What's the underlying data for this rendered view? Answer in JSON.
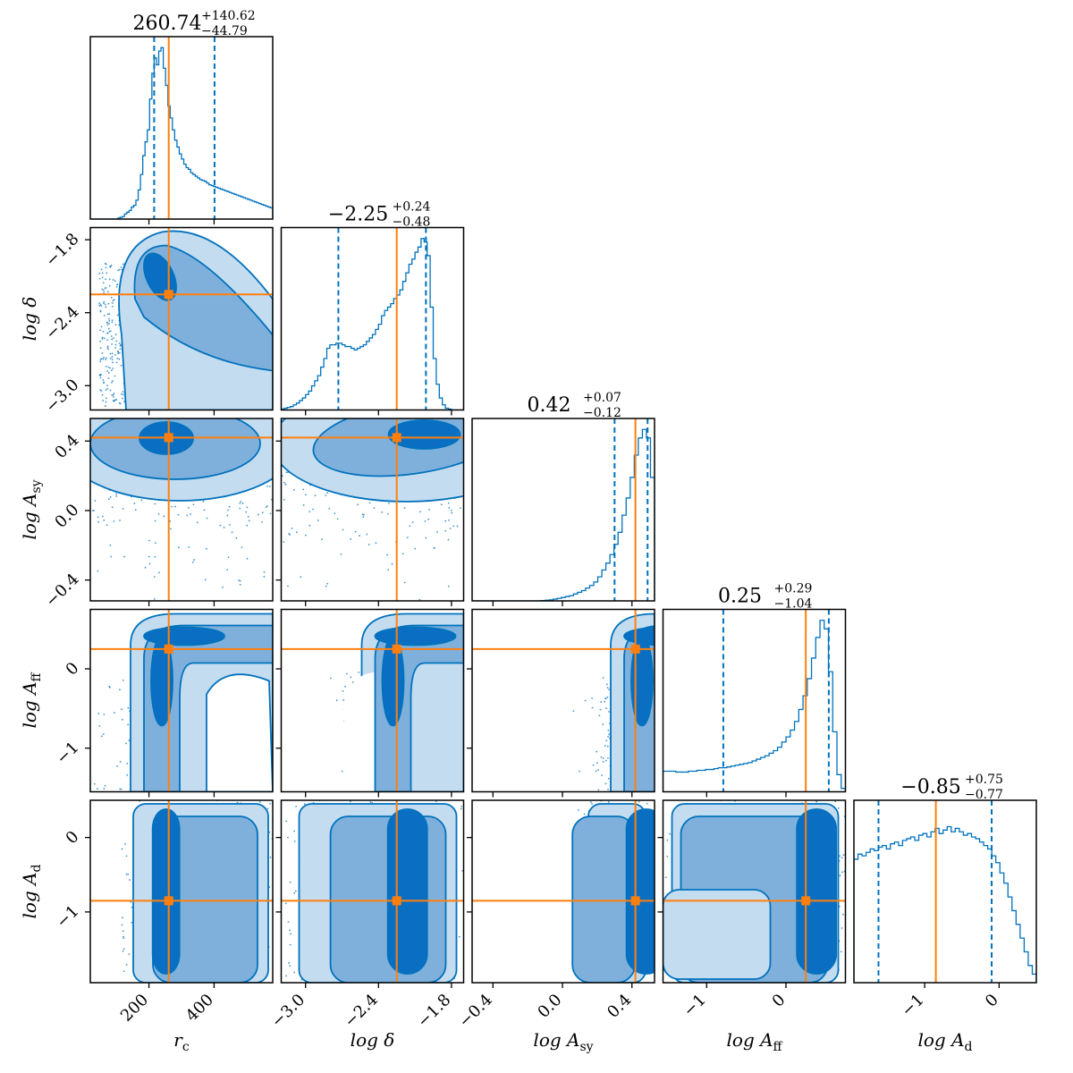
{
  "chart_data": {
    "type": "corner",
    "colors": {
      "samples": "#0072bd",
      "contour_outer": "#c4dcf0",
      "contour_mid": "#7fb0dc",
      "contour_inner": "#0a6fc2",
      "truth": "#ff7f0e",
      "axes": "#000000"
    },
    "parameters": [
      {
        "key": "rc",
        "label": "r_c",
        "range": [
          20,
          580
        ],
        "ticks": [
          200,
          400
        ],
        "tick_labels": [
          "200",
          "400"
        ],
        "median": 260.74,
        "q_low": 215.95,
        "q_high": 401.36,
        "title_main": "260.74",
        "title_plus": "+140.62",
        "title_minus": "−44.79"
      },
      {
        "key": "logdelta",
        "label": "log δ",
        "range": [
          -3.2,
          -1.7
        ],
        "ticks": [
          -3.0,
          -2.4,
          -1.8
        ],
        "tick_labels": [
          "−3.0",
          "−2.4",
          "−1.8"
        ],
        "median": -2.25,
        "q_low": -2.73,
        "q_high": -2.01,
        "title_main": "−2.25",
        "title_plus": "+0.24",
        "title_minus": "−0.48"
      },
      {
        "key": "logAsy",
        "label": "log A_sy",
        "range": [
          -0.52,
          0.53
        ],
        "ticks": [
          -0.4,
          0.0,
          0.4
        ],
        "tick_labels": [
          "−0.4",
          "0.0",
          "0.4"
        ],
        "median": 0.42,
        "q_low": 0.3,
        "q_high": 0.49,
        "title_main": "0.42",
        "title_plus": "+0.07",
        "title_minus": "−0.12"
      },
      {
        "key": "logAff",
        "label": "log A_ff",
        "range": [
          -1.55,
          0.75
        ],
        "ticks": [
          -1,
          0
        ],
        "tick_labels": [
          "−1",
          "0"
        ],
        "median": 0.25,
        "q_low": -0.79,
        "q_high": 0.54,
        "title_main": "0.25",
        "title_plus": "+0.29",
        "title_minus": "−1.04"
      },
      {
        "key": "logAd",
        "label": "log A_d",
        "range": [
          -1.95,
          0.5
        ],
        "ticks": [
          -1,
          0
        ],
        "tick_labels": [
          "−1",
          "0"
        ],
        "median": -0.85,
        "q_low": -1.62,
        "q_high": -0.1,
        "title_main": "−0.85",
        "title_plus": "+0.75",
        "title_minus": "−0.77"
      }
    ],
    "histograms": [
      [
        0,
        0,
        0,
        0,
        0,
        0,
        0,
        0,
        0,
        0,
        0,
        0,
        0.005,
        0.01,
        0.015,
        0.03,
        0.04,
        0.05,
        0.07,
        0.08,
        0.11,
        0.17,
        0.26,
        0.37,
        0.45,
        0.52,
        0.7,
        0.85,
        0.94,
        0.9,
        0.98,
        1.0,
        0.88,
        0.78,
        0.66,
        0.59,
        0.52,
        0.46,
        0.42,
        0.38,
        0.35,
        0.32,
        0.3,
        0.29,
        0.27,
        0.26,
        0.25,
        0.24,
        0.23,
        0.225,
        0.22,
        0.21,
        0.2,
        0.195,
        0.19,
        0.185,
        0.18,
        0.175,
        0.17,
        0.165,
        0.16,
        0.155,
        0.15,
        0.145,
        0.14,
        0.135,
        0.13,
        0.125,
        0.12,
        0.115,
        0.11,
        0.105,
        0.1,
        0.095,
        0.09,
        0.085,
        0.08,
        0.075,
        0.07,
        0.065
      ],
      [
        0.005,
        0.01,
        0.015,
        0.02,
        0.03,
        0.04,
        0.055,
        0.07,
        0.09,
        0.11,
        0.14,
        0.17,
        0.2,
        0.25,
        0.3,
        0.36,
        0.38,
        0.38,
        0.39,
        0.39,
        0.38,
        0.37,
        0.37,
        0.36,
        0.35,
        0.36,
        0.37,
        0.38,
        0.4,
        0.42,
        0.44,
        0.47,
        0.5,
        0.55,
        0.58,
        0.6,
        0.62,
        0.65,
        0.67,
        0.7,
        0.75,
        0.8,
        0.85,
        0.88,
        0.92,
        0.95,
        1.0,
        0.98,
        0.9,
        0.6,
        0.3,
        0.15,
        0.07,
        0.03,
        0.01,
        0.005,
        0,
        0,
        0,
        0
      ],
      [
        0,
        0,
        0,
        0,
        0,
        0,
        0,
        0,
        0,
        0,
        0,
        0,
        0,
        0,
        0,
        0,
        0,
        0.002,
        0.004,
        0.006,
        0.01,
        0.015,
        0.02,
        0.025,
        0.03,
        0.04,
        0.05,
        0.06,
        0.075,
        0.09,
        0.11,
        0.14,
        0.18,
        0.22,
        0.27,
        0.33,
        0.4,
        0.5,
        0.6,
        0.72,
        0.85,
        0.95,
        1.0,
        0.95,
        0.72
      ],
      [
        0.12,
        0.12,
        0.12,
        0.115,
        0.115,
        0.115,
        0.12,
        0.12,
        0.125,
        0.125,
        0.13,
        0.13,
        0.135,
        0.14,
        0.14,
        0.145,
        0.15,
        0.155,
        0.16,
        0.165,
        0.17,
        0.18,
        0.19,
        0.2,
        0.21,
        0.225,
        0.24,
        0.26,
        0.29,
        0.32,
        0.36,
        0.41,
        0.48,
        0.56,
        0.66,
        0.78,
        0.9,
        1.0,
        0.95,
        0.7,
        0.35,
        0.1,
        0.02
      ],
      [
        0.72,
        0.75,
        0.74,
        0.76,
        0.78,
        0.77,
        0.79,
        0.8,
        0.78,
        0.81,
        0.82,
        0.8,
        0.83,
        0.84,
        0.85,
        0.83,
        0.86,
        0.87,
        0.85,
        0.88,
        0.9,
        0.87,
        0.89,
        0.91,
        0.88,
        0.9,
        0.88,
        0.86,
        0.87,
        0.85,
        0.84,
        0.82,
        0.8,
        0.78,
        0.74,
        0.7,
        0.64,
        0.58,
        0.5,
        0.42,
        0.34,
        0.26,
        0.18,
        0.1,
        0.05
      ]
    ]
  }
}
